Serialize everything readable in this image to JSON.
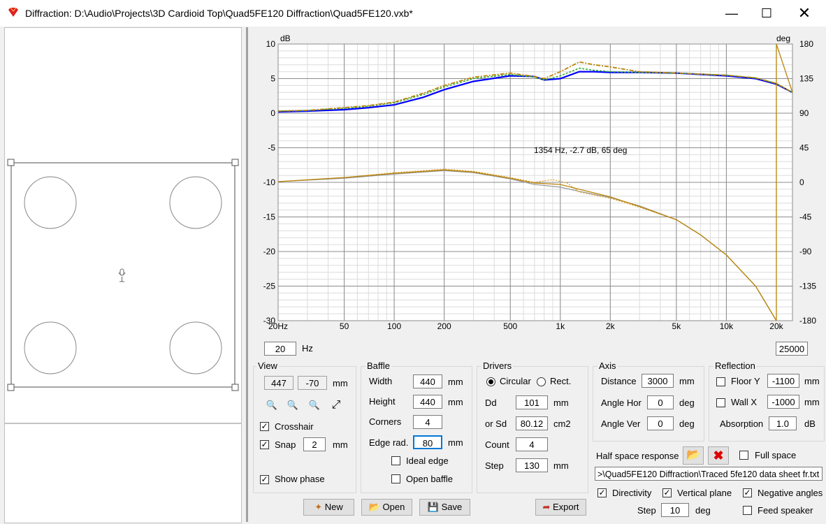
{
  "window": {
    "title": "Diffraction: D:\\Audio\\Projects\\3D Cardioid Top\\Quad5FE120 Diffraction\\Quad5FE120.vxb*"
  },
  "chart_data": {
    "type": "line",
    "xscale": "log",
    "xlim": [
      20,
      25000
    ],
    "ylim": [
      -30,
      10
    ],
    "y2lim": [
      -180,
      180
    ],
    "ylabel": "dB",
    "y2label": "deg",
    "x_ticks": [
      "20Hz",
      "50",
      "100",
      "200",
      "500",
      "1k",
      "2k",
      "5k",
      "10k",
      "20k"
    ],
    "y_ticks": [
      "10",
      "5",
      "0",
      "-5",
      "-10",
      "-15",
      "-20",
      "-25",
      "-30"
    ],
    "y2_ticks": [
      "180",
      "135",
      "90",
      "45",
      "0",
      "-45",
      "-90",
      "-135",
      "-180"
    ],
    "grid": true,
    "annotation": "1354 Hz, -2.7 dB, 65 deg",
    "series": [
      {
        "x": [
          20,
          30,
          50,
          70,
          100,
          150,
          200,
          300,
          500,
          700,
          800,
          1000,
          1300,
          1600,
          2000,
          3000,
          5000,
          10000,
          15000,
          20000,
          25000
        ],
        "values": [
          0.2,
          0.3,
          0.5,
          0.8,
          1.2,
          2.3,
          3.4,
          4.6,
          5.4,
          5.3,
          4.8,
          5.0,
          6.0,
          6.0,
          5.9,
          5.9,
          5.8,
          5.4,
          5.0,
          4.2,
          3.0
        ],
        "color": "#0000ff"
      },
      {
        "x": [
          20,
          30,
          50,
          70,
          100,
          150,
          200,
          300,
          500,
          700,
          800,
          1000,
          1300,
          1600,
          2000,
          3000,
          5000,
          10000,
          15000,
          20000,
          25000
        ],
        "values": [
          0.3,
          0.4,
          0.7,
          1.0,
          1.5,
          2.7,
          3.8,
          5.0,
          5.6,
          5.2,
          4.8,
          5.4,
          6.5,
          6.2,
          6.0,
          5.9,
          5.8,
          5.5,
          5.1,
          4.3,
          3.0
        ],
        "color": "#33aa33"
      },
      {
        "x": [
          20,
          30,
          50,
          70,
          100,
          150,
          200,
          300,
          500,
          700,
          800,
          1000,
          1300,
          1600,
          2000,
          2500,
          3000,
          5000,
          10000,
          15000,
          20000,
          25000
        ],
        "values": [
          0.3,
          0.4,
          0.8,
          1.1,
          1.6,
          2.9,
          4.0,
          5.2,
          5.8,
          5.3,
          5.0,
          6.0,
          7.4,
          7.0,
          6.7,
          6.3,
          6.0,
          5.8,
          5.5,
          5.1,
          4.3,
          3.0
        ],
        "color": "#b8860b"
      },
      {
        "x": [
          20,
          50,
          100,
          200,
          300,
          500,
          700,
          1000,
          1300,
          2000,
          3000,
          5000,
          7000,
          10000,
          15000,
          20000
        ],
        "values": [
          -9.9,
          -9.4,
          -8.8,
          -8.3,
          -8.6,
          -9.5,
          -10.3,
          -10.7,
          -11.3,
          -12.2,
          -13.4,
          -15.4,
          -17.6,
          -20.5,
          -25.0,
          -30.0
        ],
        "color": "#999999"
      },
      {
        "x": [
          20,
          50,
          100,
          200,
          300,
          500,
          700,
          900,
          1100,
          1300,
          2000,
          3000,
          5000,
          7000,
          10000,
          15000,
          20000
        ],
        "values": [
          -9.9,
          -9.3,
          -8.6,
          -8.1,
          -8.4,
          -9.3,
          -10.0,
          -9.6,
          -10.1,
          -11.4,
          -12.3,
          -13.6,
          -15.4,
          -17.6,
          -20.5,
          -25.0,
          -30.0
        ],
        "color": "#e0a030"
      },
      {
        "x": [
          20,
          50,
          100,
          200,
          300,
          500,
          700,
          1000,
          1300,
          2000,
          3000,
          5000,
          7000,
          10000,
          15000,
          20000
        ],
        "values": [
          -9.9,
          -9.3,
          -8.7,
          -8.2,
          -8.5,
          -9.4,
          -10.1,
          -10.3,
          -11.0,
          -12.1,
          -13.5,
          -15.4,
          -17.6,
          -20.5,
          -25.0,
          -30.0
        ],
        "color": "#b8860b"
      },
      {
        "x": [
          20000,
          20000,
          25000
        ],
        "values": [
          -30,
          10,
          3.0
        ],
        "color": "#b8860b"
      }
    ]
  },
  "freq": {
    "min": "20",
    "unit": "Hz",
    "max": "25000"
  },
  "view": {
    "label": "View",
    "x": "447",
    "y": "-70",
    "unit": "mm",
    "crosshair": "Crosshair",
    "snap": "Snap",
    "snap_val": "2",
    "snap_unit": "mm",
    "show_phase": "Show phase"
  },
  "baffle": {
    "label": "Baffle",
    "width_l": "Width",
    "width": "440",
    "height_l": "Height",
    "height": "440",
    "corners_l": "Corners",
    "corners": "4",
    "edge_l": "Edge rad.",
    "edge": "80",
    "unit": "mm",
    "ideal": "Ideal edge",
    "open": "Open baffle"
  },
  "drivers": {
    "label": "Drivers",
    "circular": "Circular",
    "rect": "Rect.",
    "dd_l": "Dd",
    "dd": "101",
    "sd_l": "or Sd",
    "sd": "80.12",
    "sd_unit": "cm2",
    "count_l": "Count",
    "count": "4",
    "step_l": "Step",
    "step": "130",
    "unit": "mm"
  },
  "axis": {
    "label": "Axis",
    "distance_l": "Distance",
    "distance": "3000",
    "hor_l": "Angle Hor",
    "hor": "0",
    "ver_l": "Angle Ver",
    "ver": "0",
    "unit": "mm",
    "deg": "deg"
  },
  "reflection": {
    "label": "Reflection",
    "floor_l": "Floor Y",
    "floor": "-1100",
    "wall_l": "Wall  X",
    "wall": "-1000",
    "abs_l": "Absorption",
    "abs": "1.0",
    "unit": "mm",
    "db": "dB"
  },
  "half": {
    "label": "Half space response",
    "full": "Full space",
    "path": ">\\Quad5FE120 Diffraction\\Traced 5fe120 data sheet fr.txt"
  },
  "dir": {
    "directivity": "Directivity",
    "vertical": "Vertical plane",
    "negative": "Negative angles",
    "step_l": "Step",
    "step": "10",
    "deg": "deg",
    "feed": "Feed speaker"
  },
  "buttons": {
    "new": "New",
    "open": "Open",
    "save": "Save",
    "export": "Export"
  }
}
